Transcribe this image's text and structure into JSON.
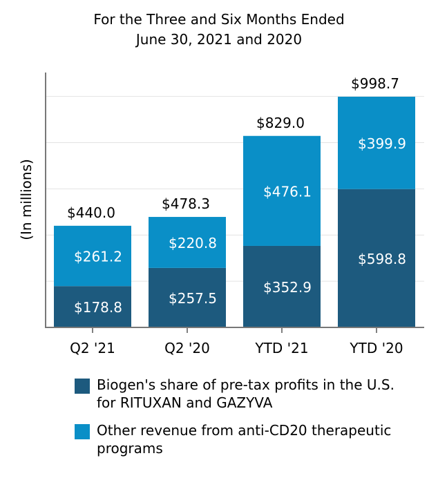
{
  "chart_data": {
    "type": "bar",
    "stacked": true,
    "title": [
      "For the Three and Six Months Ended",
      "June 30, 2021 and 2020"
    ],
    "ylabel": "(In millions)",
    "xlabel": "",
    "ylim": [
      0,
      1100
    ],
    "grid": true,
    "categories": [
      "Q2 '21",
      "Q2 '20",
      "YTD '21",
      "YTD '20"
    ],
    "series": [
      {
        "name": "Biogen's share of pre-tax profits in the U.S. for RITUXAN and GAZYVA",
        "legend_lines": [
          "Biogen's share of pre-tax profits in the U.S.",
          "for RITUXAN and GAZYVA"
        ],
        "color": "#1d5a7e",
        "values": [
          178.8,
          257.5,
          352.9,
          598.8
        ],
        "labels": [
          "$178.8",
          "$257.5",
          "$352.9",
          "$598.8"
        ]
      },
      {
        "name": "Other revenue from anti-CD20 therapeutic programs",
        "legend_lines": [
          "Other revenue from anti-CD20 therapeutic",
          "programs"
        ],
        "color": "#0a8fc7",
        "values": [
          261.2,
          220.8,
          476.1,
          399.9
        ],
        "labels": [
          "$261.2",
          "$220.8",
          "$476.1",
          "$399.9"
        ]
      }
    ],
    "totals": [
      440.0,
      478.3,
      829.0,
      998.7
    ],
    "total_labels": [
      "$440.0",
      "$478.3",
      "$829.0",
      "$998.7"
    ],
    "legend_position": "bottom"
  }
}
